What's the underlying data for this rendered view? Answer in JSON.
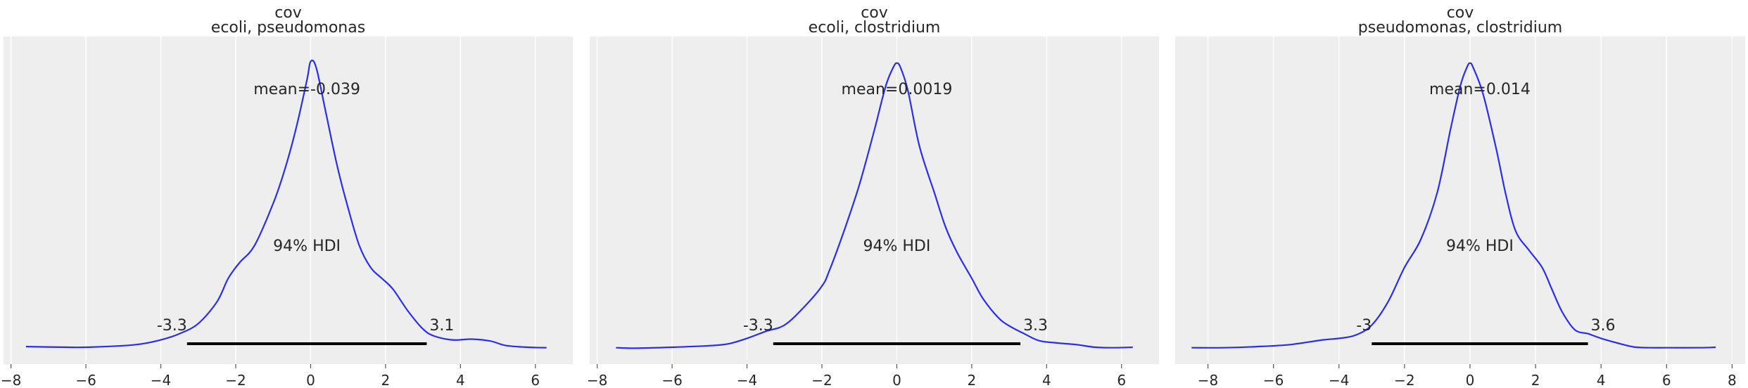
{
  "chart_data": [
    {
      "type": "line",
      "title_line1": "cov",
      "title_line2": "ecoli, pseudomonas",
      "xlim": [
        -8.2,
        7.0
      ],
      "ylim": [
        -0.01,
        0.2
      ],
      "xticks": [
        -8,
        -6,
        -4,
        -2,
        0,
        2,
        4,
        6
      ],
      "xtick_labels": [
        "−8",
        "−6",
        "−4",
        "−2",
        "0",
        "2",
        "4",
        "6"
      ],
      "mean_label": "mean=-0.039",
      "hdi_label": "94% HDI",
      "hdi_low": -3.3,
      "hdi_high": 3.1,
      "hdi_low_label": "-3.3",
      "hdi_high_label": "3.1",
      "line_color": "#2a2eec",
      "density": {
        "x": [
          -7.6,
          -6.5,
          -6.0,
          -5.0,
          -4.5,
          -4.0,
          -3.5,
          -3.0,
          -2.5,
          -2.2,
          -1.9,
          -1.5,
          -1.0,
          -0.7,
          -0.4,
          -0.1,
          0.0,
          0.15,
          0.4,
          0.7,
          1.0,
          1.3,
          1.6,
          1.9,
          2.2,
          2.6,
          3.0,
          3.3,
          3.8,
          4.3,
          4.8,
          5.2,
          5.8,
          6.3
        ],
        "y": [
          0.0012,
          0.0008,
          0.0008,
          0.0018,
          0.003,
          0.0055,
          0.0095,
          0.016,
          0.03,
          0.045,
          0.055,
          0.066,
          0.093,
          0.114,
          0.14,
          0.172,
          0.184,
          0.18,
          0.152,
          0.118,
          0.09,
          0.066,
          0.052,
          0.045,
          0.038,
          0.024,
          0.0125,
          0.008,
          0.0055,
          0.006,
          0.0048,
          0.002,
          0.0008,
          0.0005
        ]
      }
    },
    {
      "type": "line",
      "title_line1": "cov",
      "title_line2": "ecoli, clostridium",
      "xlim": [
        -8.2,
        7.0
      ],
      "ylim": [
        -0.01,
        0.2
      ],
      "xticks": [
        -8,
        -6,
        -4,
        -2,
        0,
        2,
        4,
        6
      ],
      "xtick_labels": [
        "−8",
        "−6",
        "−4",
        "−2",
        "0",
        "2",
        "4",
        "6"
      ],
      "mean_label": "mean=0.0019",
      "hdi_label": "94% HDI",
      "hdi_low": -3.3,
      "hdi_high": 3.3,
      "hdi_low_label": "-3.3",
      "hdi_high_label": "3.3",
      "line_color": "#2a2eec",
      "density": {
        "x": [
          -7.5,
          -7.0,
          -6.0,
          -5.0,
          -4.5,
          -4.0,
          -3.5,
          -3.0,
          -2.5,
          -2.0,
          -1.8,
          -1.4,
          -1.0,
          -0.6,
          -0.3,
          -0.1,
          0.0,
          0.1,
          0.3,
          0.6,
          1.0,
          1.3,
          1.6,
          2.0,
          2.3,
          2.7,
          3.0,
          3.4,
          3.8,
          4.3,
          4.8,
          5.3,
          5.8,
          6.3
        ],
        "y": [
          0.0005,
          0.0002,
          0.0008,
          0.0018,
          0.003,
          0.0065,
          0.011,
          0.015,
          0.026,
          0.04,
          0.05,
          0.076,
          0.105,
          0.14,
          0.168,
          0.18,
          0.183,
          0.18,
          0.165,
          0.13,
          0.1,
          0.078,
          0.062,
          0.045,
          0.032,
          0.02,
          0.0145,
          0.0095,
          0.005,
          0.0035,
          0.0025,
          0.0008,
          0.0005,
          0.0008
        ]
      }
    },
    {
      "type": "line",
      "title_line1": "cov",
      "title_line2": "pseudomonas, clostridium",
      "xlim": [
        -9.0,
        8.4
      ],
      "ylim": [
        -0.01,
        0.2
      ],
      "xticks": [
        -8,
        -6,
        -4,
        -2,
        0,
        2,
        4,
        6,
        8
      ],
      "xtick_labels": [
        "−8",
        "−6",
        "−4",
        "−2",
        "0",
        "2",
        "4",
        "6",
        "8"
      ],
      "mean_label": "mean=0.014",
      "hdi_label": "94% HDI",
      "hdi_low": -3.0,
      "hdi_high": 3.6,
      "hdi_low_label": "-3",
      "hdi_high_label": "3.6",
      "line_color": "#2a2eec",
      "density": {
        "x": [
          -8.5,
          -7.5,
          -6.5,
          -5.5,
          -4.5,
          -4.0,
          -3.5,
          -3.0,
          -2.5,
          -2.0,
          -1.5,
          -1.0,
          -0.6,
          -0.3,
          -0.1,
          0.0,
          0.1,
          0.4,
          0.8,
          1.1,
          1.4,
          1.8,
          2.2,
          2.5,
          2.8,
          3.2,
          3.6,
          4.0,
          4.5,
          5.0,
          5.5,
          6.0,
          7.0,
          7.5
        ],
        "y": [
          0.0005,
          0.0005,
          0.0012,
          0.0025,
          0.0055,
          0.0065,
          0.0085,
          0.015,
          0.03,
          0.052,
          0.07,
          0.1,
          0.14,
          0.168,
          0.18,
          0.183,
          0.18,
          0.163,
          0.128,
          0.098,
          0.075,
          0.063,
          0.052,
          0.038,
          0.024,
          0.012,
          0.0095,
          0.0065,
          0.0035,
          0.001,
          0.0005,
          0.0005,
          0.0005,
          0.0008
        ]
      }
    }
  ]
}
